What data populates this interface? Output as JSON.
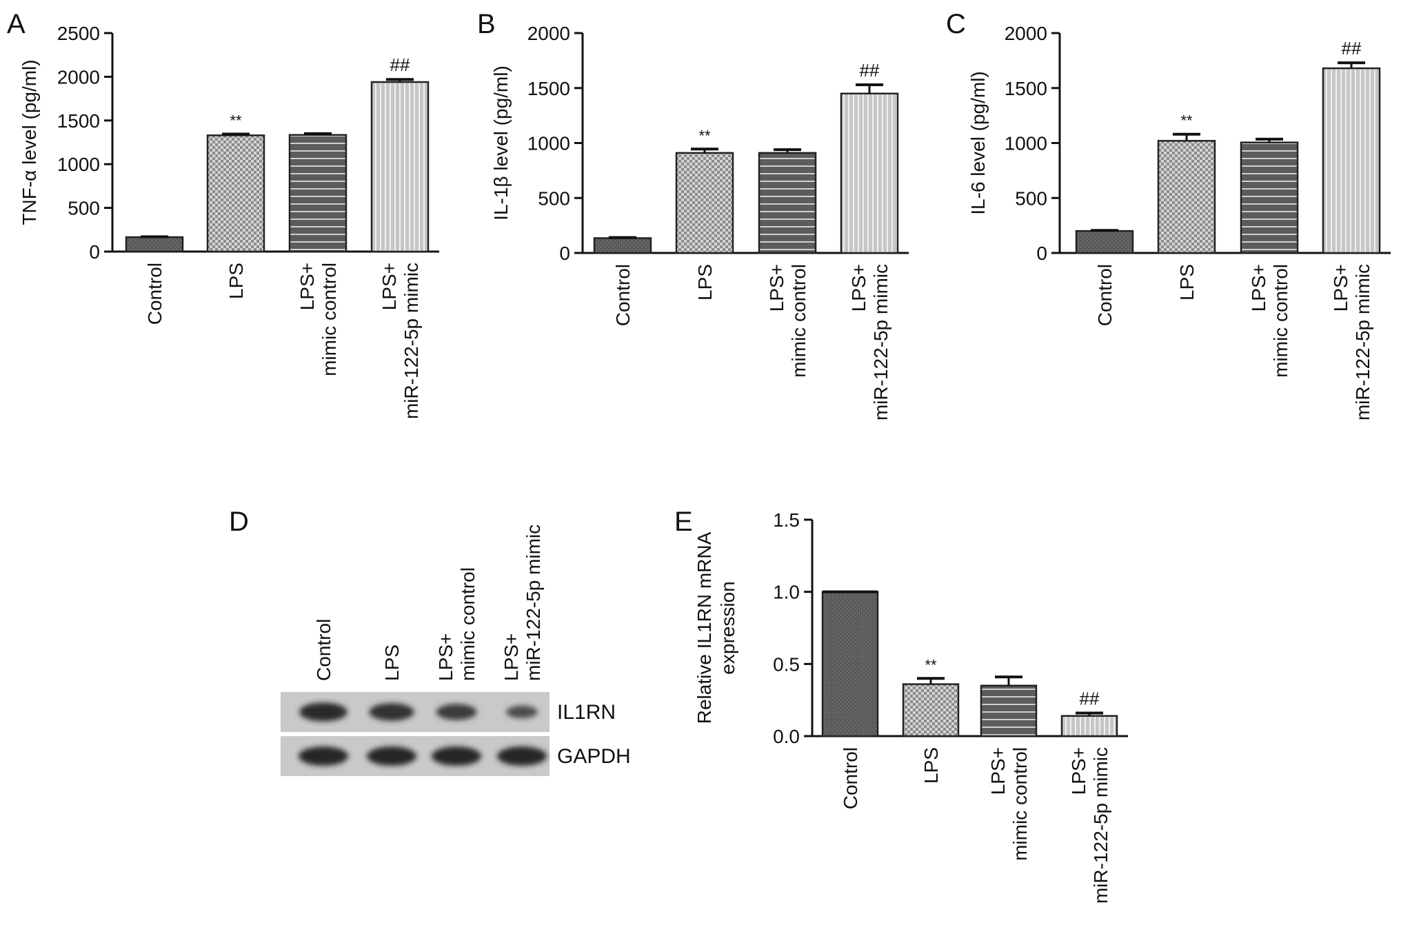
{
  "chart_data": [
    {
      "panel": "A",
      "type": "bar",
      "ylabel": "TNF-α level (pg/ml)",
      "ylim": [
        0,
        2500
      ],
      "yticks": [
        0,
        500,
        1000,
        1500,
        2000,
        2500
      ],
      "ytick_labels": [
        "0",
        "500",
        "1000",
        "1500",
        "2000",
        "2500"
      ],
      "categories": [
        [
          "Control"
        ],
        [
          "LPS"
        ],
        [
          "LPS+",
          "mimic control"
        ],
        [
          "LPS+",
          "miR-122-5p mimic"
        ]
      ],
      "values": [
        165,
        1330,
        1335,
        1940
      ],
      "errors": [
        5,
        15,
        15,
        30
      ],
      "annotations": [
        "",
        "**",
        "",
        "##"
      ],
      "fills": [
        "crosshatch-dark",
        "checker-light",
        "hstripe-dark",
        "vstripe-light"
      ]
    },
    {
      "panel": "B",
      "type": "bar",
      "ylabel": "IL-1β level (pg/ml)",
      "ylim": [
        0,
        2000
      ],
      "yticks": [
        0,
        500,
        1000,
        1500,
        2000
      ],
      "ytick_labels": [
        "0",
        "500",
        "1000",
        "1500",
        "2000"
      ],
      "categories": [
        [
          "Control"
        ],
        [
          "LPS"
        ],
        [
          "LPS+",
          "mimic control"
        ],
        [
          "LPS+",
          "miR-122-5p mimic"
        ]
      ],
      "values": [
        135,
        910,
        910,
        1450
      ],
      "errors": [
        5,
        35,
        30,
        80
      ],
      "annotations": [
        "",
        "**",
        "",
        "##"
      ],
      "fills": [
        "crosshatch-dark",
        "checker-light",
        "hstripe-dark",
        "vstripe-light"
      ]
    },
    {
      "panel": "C",
      "type": "bar",
      "ylabel": "IL-6 level (pg/ml)",
      "ylim": [
        0,
        2000
      ],
      "yticks": [
        0,
        500,
        1000,
        1500,
        2000
      ],
      "ytick_labels": [
        "0",
        "500",
        "1000",
        "1500",
        "2000"
      ],
      "categories": [
        [
          "Control"
        ],
        [
          "LPS"
        ],
        [
          "LPS+",
          "mimic control"
        ],
        [
          "LPS+",
          "miR-122-5p mimic"
        ]
      ],
      "values": [
        200,
        1020,
        1005,
        1680
      ],
      "errors": [
        5,
        60,
        30,
        50
      ],
      "annotations": [
        "",
        "**",
        "",
        "##"
      ],
      "fills": [
        "crosshatch-dark",
        "checker-light",
        "hstripe-dark",
        "vstripe-light"
      ]
    },
    {
      "panel": "E",
      "type": "bar",
      "ylabel": [
        "Relative IL1RN mRNA",
        "expression"
      ],
      "ylim": [
        0,
        1.5
      ],
      "yticks": [
        0,
        0.5,
        1.0,
        1.5
      ],
      "ytick_labels": [
        "0.0",
        "0.5",
        "1.0",
        "1.5"
      ],
      "categories": [
        [
          "Control"
        ],
        [
          "LPS"
        ],
        [
          "LPS+",
          "mimic control"
        ],
        [
          "LPS+",
          "miR-122-5p mimic"
        ]
      ],
      "values": [
        1.0,
        0.36,
        0.35,
        0.14
      ],
      "errors": [
        0.0,
        0.04,
        0.06,
        0.02
      ],
      "annotations": [
        "",
        "**",
        "",
        "##"
      ],
      "fills": [
        "crosshatch-dark",
        "checker-light",
        "hstripe-dark",
        "vstripe-light"
      ]
    }
  ],
  "western_blot": {
    "panel": "D",
    "lanes": [
      [
        "Control"
      ],
      [
        "LPS"
      ],
      [
        "LPS+",
        "mimic control"
      ],
      [
        "LPS+",
        "miR-122-5p mimic"
      ]
    ],
    "rows": [
      {
        "label": "IL1RN",
        "intensity": [
          0.95,
          0.85,
          0.7,
          0.4
        ]
      },
      {
        "label": "GAPDH",
        "intensity": [
          1.0,
          1.0,
          1.0,
          1.0
        ]
      }
    ]
  }
}
